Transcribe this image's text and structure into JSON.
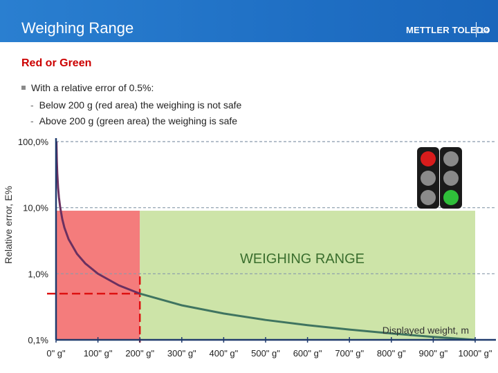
{
  "slide": {
    "title": "Weighing Range",
    "brand": "METTLER TOLEDO",
    "page_number": "14",
    "subtitle": "Red or Green",
    "bullet": "With a relative error of 0.5%:",
    "sub_bullets": [
      "Below 200 g (red area) the weighing is not safe",
      "Above 200 g (green area) the weighing is safe"
    ]
  },
  "chart_data": {
    "type": "line",
    "title": "",
    "xlabel": "Displayed weight, m",
    "ylabel": "Relative error, E%",
    "y_scale": "log",
    "ylim": [
      0.1,
      100
    ],
    "xlim": [
      0,
      1000
    ],
    "y_ticks": [
      "100,0%",
      "10,0%",
      "1,0%",
      "0,1%"
    ],
    "y_tick_values": [
      100,
      10,
      1,
      0.1
    ],
    "x_ticks": [
      "0\" g\"",
      "100\" g\"",
      "200\" g\"",
      "300\" g\"",
      "400\" g\"",
      "500\" g\"",
      "600\" g\"",
      "700\" g\"",
      "800\" g\"",
      "900\" g\"",
      "1000\" g\""
    ],
    "x_tick_values": [
      0,
      100,
      200,
      300,
      400,
      500,
      600,
      700,
      800,
      900,
      1000
    ],
    "grid": "horizontal dashed at each decade",
    "curve": {
      "formula": "E = 100 / m",
      "x": [
        1,
        2,
        3,
        5,
        7,
        10,
        15,
        20,
        30,
        50,
        70,
        100,
        150,
        200,
        300,
        400,
        500,
        600,
        700,
        800,
        900,
        1000
      ],
      "y": [
        100,
        50,
        33.3,
        20,
        14.3,
        10,
        6.67,
        5,
        3.33,
        2,
        1.43,
        1,
        0.667,
        0.5,
        0.333,
        0.25,
        0.2,
        0.167,
        0.143,
        0.125,
        0.111,
        0.1
      ]
    },
    "regions": [
      {
        "name": "red",
        "x_range": [
          0,
          200
        ],
        "y_range": [
          0.1,
          9
        ],
        "color": "#f47c7c"
      },
      {
        "name": "green",
        "x_range": [
          200,
          1000
        ],
        "y_range": [
          0.1,
          9
        ],
        "color": "#cde4a8"
      }
    ],
    "threshold": {
      "error_percent": 0.5,
      "weight": 200,
      "color": "#dd1111"
    },
    "annotation": "WEIGHING RANGE",
    "colors": {
      "curve_red_part": "#6b3060",
      "curve_green_part": "#3f7460",
      "axis": "#1f3a6d",
      "grid": "#8899aa",
      "annotation": "#3a6e2e"
    },
    "traffic_light": {
      "lit": "green",
      "icon": "traffic-light-icon"
    }
  }
}
